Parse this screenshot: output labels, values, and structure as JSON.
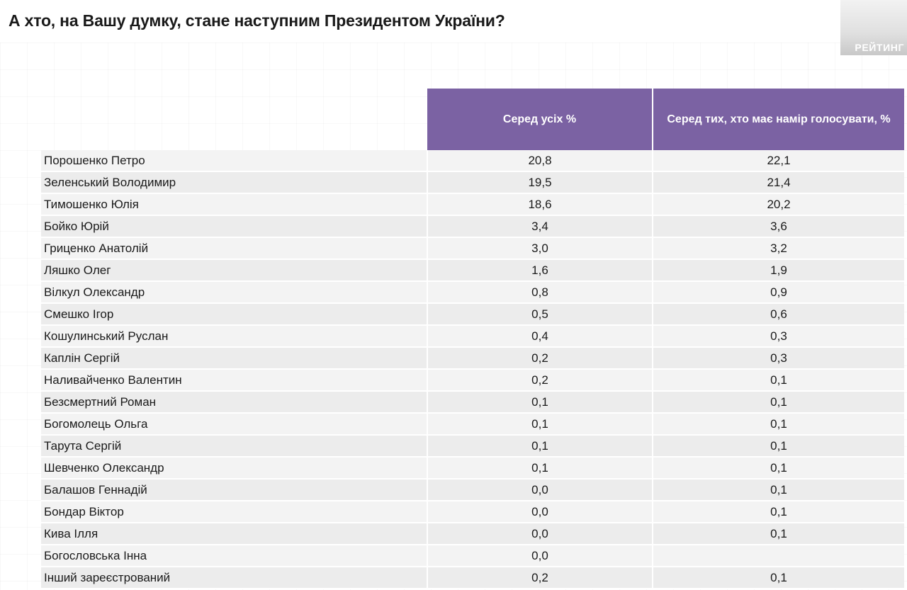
{
  "title": "А хто, на Вашу думку, стане наступним Президентом України?",
  "logo_text": "РЕЙТИНГ",
  "accent_color": "#7b62a3",
  "table": {
    "corner_header": "",
    "columns": [
      "Серед усіх %",
      "Серед тих, хто має намір голосувати, %"
    ],
    "rows": [
      {
        "name": "Порошенко Петро",
        "all": "20,8",
        "voters": "22,1"
      },
      {
        "name": "Зеленський Володимир",
        "all": "19,5",
        "voters": "21,4"
      },
      {
        "name": "Тимошенко Юлія",
        "all": "18,6",
        "voters": "20,2"
      },
      {
        "name": "Бойко Юрій",
        "all": "3,4",
        "voters": "3,6"
      },
      {
        "name": "Гриценко Анатолій",
        "all": "3,0",
        "voters": "3,2"
      },
      {
        "name": "Ляшко Олег",
        "all": "1,6",
        "voters": "1,9"
      },
      {
        "name": "Вілкул Олександр",
        "all": "0,8",
        "voters": "0,9"
      },
      {
        "name": "Смешко Ігор",
        "all": "0,5",
        "voters": "0,6"
      },
      {
        "name": "Кошулинський Руслан",
        "all": "0,4",
        "voters": "0,3"
      },
      {
        "name": "Каплін Сергій",
        "all": "0,2",
        "voters": "0,3"
      },
      {
        "name": "Наливайченко Валентин",
        "all": "0,2",
        "voters": "0,1"
      },
      {
        "name": "Безсмертний Роман",
        "all": "0,1",
        "voters": "0,1"
      },
      {
        "name": "Богомолець Ольга",
        "all": "0,1",
        "voters": "0,1"
      },
      {
        "name": "Тарута Сергій",
        "all": "0,1",
        "voters": "0,1"
      },
      {
        "name": "Шевченко Олександр",
        "all": "0,1",
        "voters": "0,1"
      },
      {
        "name": "Балашов Геннадій",
        "all": "0,0",
        "voters": "0,1"
      },
      {
        "name": "Бондар Віктор",
        "all": "0,0",
        "voters": "0,1"
      },
      {
        "name": "Кива Ілля",
        "all": "0,0",
        "voters": "0,1"
      },
      {
        "name": "Богословська Інна",
        "all": "0,0",
        "voters": ""
      },
      {
        "name": "Інший зареєстрований",
        "all": "0,2",
        "voters": "0,1"
      }
    ]
  }
}
